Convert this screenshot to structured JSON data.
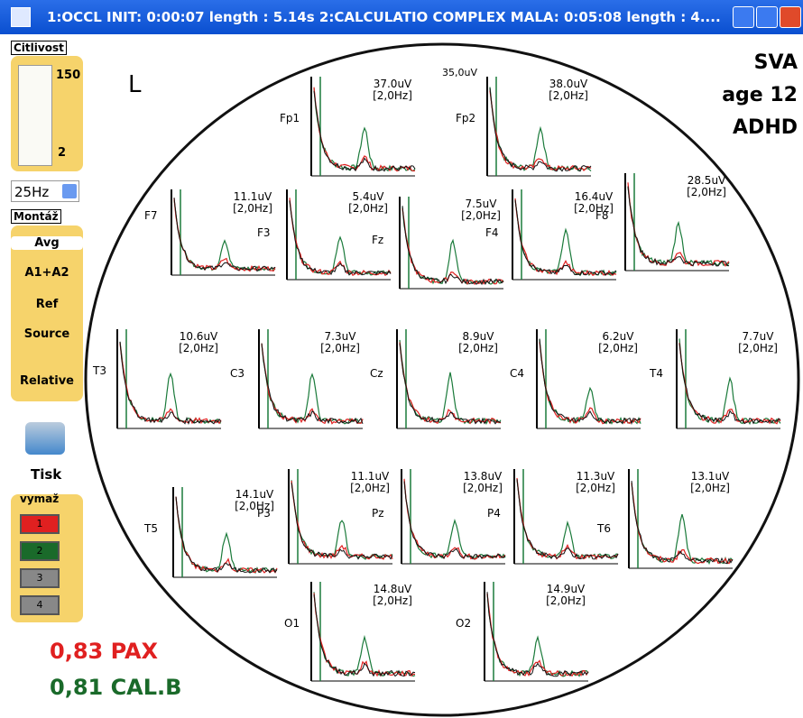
{
  "window": {
    "title": "1:OCCL INIT: 0:00:07 length : 5.14s   2:CALCULATIO  COMPLEX MALA: 0:05:08 length : 4...."
  },
  "sidebar": {
    "sensitivity": "Citlivost",
    "slider_max": "150",
    "slider_min": "2",
    "filter": "25Hz",
    "montage": "Montáž",
    "options": [
      "Avg",
      "A1+A2",
      "Ref",
      "Source",
      "Relative"
    ],
    "print": "Tisk",
    "clear": "vymaž",
    "buttons": [
      "1",
      "2",
      "3",
      "4"
    ]
  },
  "head": {
    "side": "L",
    "patient": [
      "SVA",
      "age 12",
      "ADHD"
    ],
    "scale": "35,0uV",
    "channels": [
      {
        "name": "Fp1",
        "amp": "37.0uV",
        "freq": "[2,0Hz]"
      },
      {
        "name": "Fp2",
        "amp": "38.0uV",
        "freq": "[2,0Hz]"
      },
      {
        "name": "F7",
        "amp": "11.1uV",
        "freq": "[2,0Hz]"
      },
      {
        "name": "F3",
        "amp": "5.4uV",
        "freq": "[2,0Hz]"
      },
      {
        "name": "Fz",
        "amp": "7.5uV",
        "freq": "[2,0Hz]"
      },
      {
        "name": "F4",
        "amp": "16.4uV",
        "freq": "[2,0Hz]"
      },
      {
        "name": "F8",
        "amp": "28.5uV",
        "freq": "[2,0Hz]"
      },
      {
        "name": "T3",
        "amp": "10.6uV",
        "freq": "[2,0Hz]"
      },
      {
        "name": "C3",
        "amp": "7.3uV",
        "freq": "[2,0Hz]"
      },
      {
        "name": "Cz",
        "amp": "8.9uV",
        "freq": "[2,0Hz]"
      },
      {
        "name": "C4",
        "amp": "6.2uV",
        "freq": "[2,0Hz]"
      },
      {
        "name": "T4",
        "amp": "7.7uV",
        "freq": "[2,0Hz]"
      },
      {
        "name": "T5",
        "amp": "14.1uV",
        "freq": "[2,0Hz]"
      },
      {
        "name": "P3",
        "amp": "11.1uV",
        "freq": "[2,0Hz]"
      },
      {
        "name": "Pz",
        "amp": "13.8uV",
        "freq": "[2,0Hz]"
      },
      {
        "name": "P4",
        "amp": "11.3uV",
        "freq": "[2,0Hz]"
      },
      {
        "name": "T6",
        "amp": "13.1uV",
        "freq": "[2,0Hz]"
      },
      {
        "name": "O1",
        "amp": "14.8uV",
        "freq": "[2,0Hz]"
      },
      {
        "name": "O2",
        "amp": "14.9uV",
        "freq": "[2,0Hz]"
      }
    ]
  },
  "legend": [
    "0,83 PAX",
    "0,81 CAL.B"
  ]
}
